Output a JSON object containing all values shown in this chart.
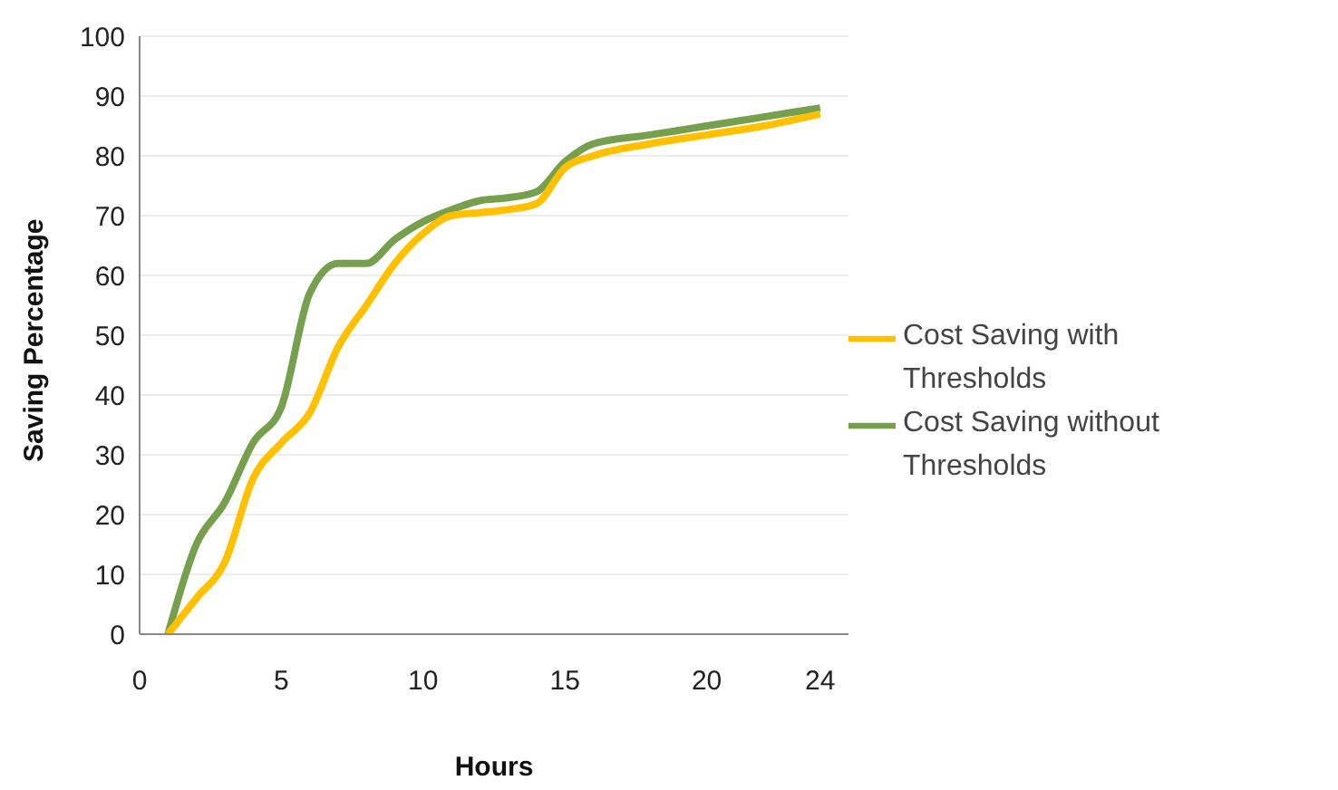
{
  "chart_data": {
    "type": "line",
    "xlabel": "Hours",
    "ylabel": "Saving Percentage",
    "xlim": [
      0,
      25
    ],
    "xticks": [
      0,
      5,
      10,
      15,
      20,
      24
    ],
    "ylim": [
      0,
      100
    ],
    "yticks": [
      0,
      10,
      20,
      30,
      40,
      50,
      60,
      70,
      80,
      90,
      100
    ],
    "grid": "y",
    "legend": "right",
    "marker": "none",
    "line_style": "solid",
    "series": [
      {
        "name": "Cost Saving without Thresholds",
        "color": "#77a04e",
        "x": [
          1,
          2,
          3,
          4,
          5,
          6,
          7,
          8,
          9,
          10,
          11,
          12,
          13,
          14,
          15,
          16,
          18,
          20,
          22,
          24
        ],
        "values": [
          0,
          15,
          22,
          32,
          38,
          57,
          62,
          62,
          66,
          69,
          71,
          72.5,
          73,
          74,
          79,
          82,
          83.5,
          85,
          86.5,
          88
        ]
      },
      {
        "name": "Cost Saving with Thresholds",
        "color": "#ffc000",
        "x": [
          1,
          2,
          3,
          4,
          5,
          6,
          7,
          8,
          9,
          10,
          11,
          12,
          13,
          14,
          15,
          16,
          18,
          20,
          22,
          24
        ],
        "values": [
          0,
          6,
          12,
          26,
          32,
          37,
          48,
          55,
          62,
          67,
          70,
          70.5,
          71,
          72,
          78,
          80,
          82,
          83.5,
          85,
          87
        ]
      }
    ]
  }
}
